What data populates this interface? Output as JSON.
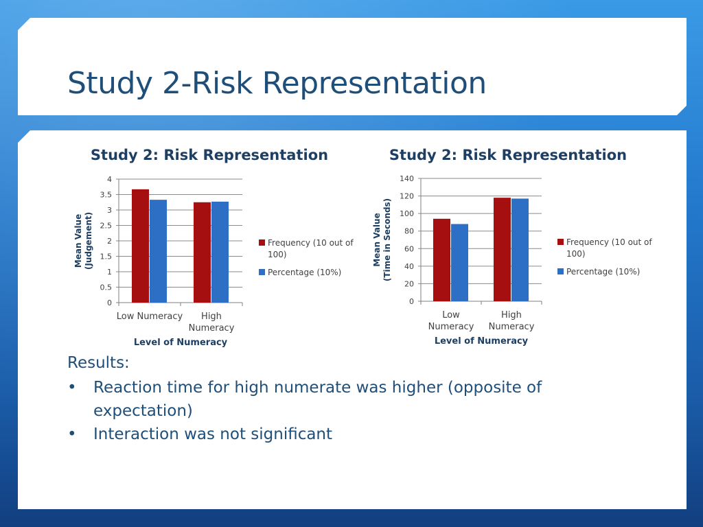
{
  "slide": {
    "title": "Study 2-Risk Representation",
    "results_label": "Results:",
    "bullets": [
      "Reaction time for high numerate was higher (opposite of expectation)",
      "Interaction was not  significant"
    ],
    "bullet_char": "•"
  },
  "chart_data": [
    {
      "type": "bar",
      "title": "Study 2: Risk Representation",
      "categories": [
        "Low Numeracy",
        "High Numeracy"
      ],
      "series": [
        {
          "name": "Frequency (10 out of 100)",
          "values": [
            3.67,
            3.25
          ],
          "color": "#a50f0f"
        },
        {
          "name": "Percentage (10%)",
          "values": [
            3.33,
            3.27
          ],
          "color": "#2d6fc4"
        }
      ],
      "xlabel": "Level of Numeracy",
      "ylabel": [
        "Mean Value",
        "(Judgement)"
      ],
      "ylim": [
        0,
        4
      ],
      "yticks": [
        "0",
        "0.5",
        "1",
        "1.5",
        "2",
        "2.5",
        "3",
        "3.5",
        "4"
      ],
      "grid": true,
      "legend": "right"
    },
    {
      "type": "bar",
      "title": "Study 2: Risk Representation",
      "categories": [
        "Low Numeracy",
        "High Numeracy"
      ],
      "series": [
        {
          "name": "Frequency (10 out of 100)",
          "values": [
            94,
            118
          ],
          "color": "#a50f0f"
        },
        {
          "name": "Percentage (10%)",
          "values": [
            88,
            117
          ],
          "color": "#2d6fc4"
        }
      ],
      "xlabel": "Level of Numeracy",
      "ylabel": [
        "Mean Value",
        "(Time in Seconds)"
      ],
      "ylim": [
        0,
        140
      ],
      "yticks": [
        "0",
        "20",
        "40",
        "60",
        "80",
        "100",
        "120",
        "140"
      ],
      "grid": true,
      "legend": "right"
    }
  ]
}
